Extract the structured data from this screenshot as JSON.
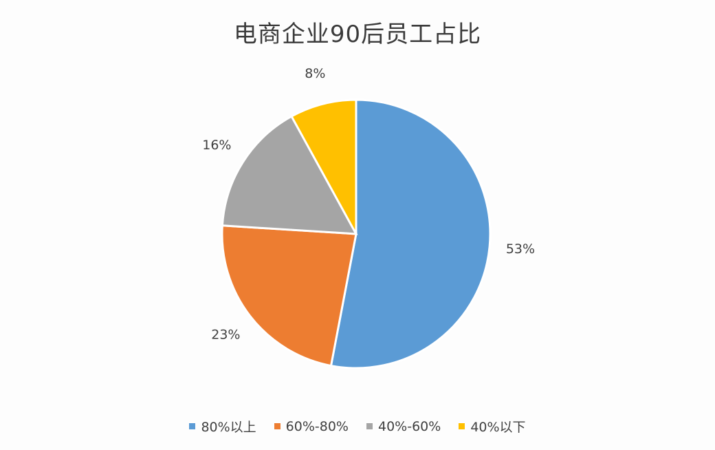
{
  "chart_data": {
    "type": "pie",
    "title": "电商企业90后员工占比",
    "categories": [
      "80%以上",
      "60%-80%",
      "40%-60%",
      "40%以下"
    ],
    "values": [
      53,
      23,
      16,
      8
    ],
    "data_labels": [
      "53%",
      "23%",
      "16%",
      "8%"
    ],
    "colors": [
      "#5b9bd5",
      "#ed7d31",
      "#a5a5a5",
      "#ffc000"
    ],
    "legend_position": "bottom"
  }
}
